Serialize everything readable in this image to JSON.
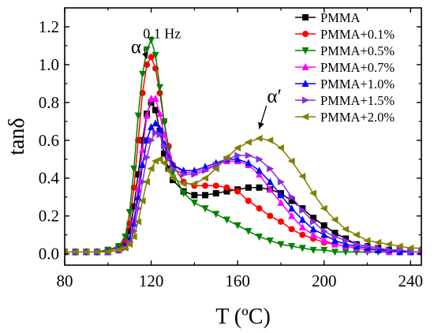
{
  "chart_data": {
    "type": "line",
    "xlabel": "T (ºC)",
    "ylabel": "tanδ",
    "xlim": [
      80,
      245
    ],
    "ylim": [
      -0.06,
      1.3
    ],
    "xticks": [
      80,
      120,
      160,
      200,
      240
    ],
    "yticks": [
      0.0,
      0.2,
      0.4,
      0.6,
      0.8,
      1.0,
      1.2
    ],
    "ytick_labels": [
      "0.0",
      "0.2",
      "0.4",
      "0.6",
      "0.8",
      "1.0",
      "1.2"
    ],
    "grid": false,
    "legend_position": "top-right",
    "annotations": [
      {
        "id": "freq",
        "text": "0.1 Hz",
        "x": 125,
        "y": 1.14
      },
      {
        "id": "alpha",
        "text": "α",
        "x": 113,
        "y": 1.06,
        "arrow_to": [
          118,
          1.03
        ]
      },
      {
        "id": "alpha-prime",
        "text": "α′",
        "x": 177,
        "y": 0.8,
        "arrow_to": [
          170,
          0.66
        ]
      }
    ],
    "series": [
      {
        "name": "PMMA",
        "color": "#000000",
        "marker": "square",
        "x": [
          80,
          85,
          90,
          95,
          100,
          105,
          108,
          110,
          112,
          114,
          116,
          118,
          120,
          122,
          124,
          126,
          128,
          130,
          135,
          140,
          145,
          150,
          155,
          160,
          165,
          170,
          175,
          180,
          185,
          190,
          195,
          200,
          205,
          210,
          215,
          220,
          225,
          230,
          235,
          240,
          245
        ],
        "y": [
          0.01,
          0.01,
          0.01,
          0.01,
          0.02,
          0.03,
          0.06,
          0.12,
          0.25,
          0.42,
          0.6,
          0.74,
          0.8,
          0.76,
          0.65,
          0.53,
          0.45,
          0.39,
          0.33,
          0.31,
          0.31,
          0.32,
          0.33,
          0.34,
          0.35,
          0.35,
          0.34,
          0.32,
          0.28,
          0.24,
          0.19,
          0.15,
          0.11,
          0.08,
          0.05,
          0.04,
          0.03,
          0.02,
          0.02,
          0.01,
          0.01
        ]
      },
      {
        "name": "PMMA+0.1%",
        "color": "#ff0000",
        "marker": "circle",
        "x": [
          80,
          85,
          90,
          95,
          100,
          105,
          108,
          110,
          112,
          114,
          116,
          118,
          120,
          122,
          124,
          126,
          128,
          130,
          135,
          140,
          145,
          150,
          155,
          160,
          165,
          170,
          175,
          180,
          185,
          190,
          195,
          200,
          205,
          210,
          215,
          220,
          225,
          230,
          235,
          240,
          245
        ],
        "y": [
          0.01,
          0.01,
          0.01,
          0.01,
          0.02,
          0.03,
          0.07,
          0.16,
          0.35,
          0.6,
          0.85,
          1.0,
          1.04,
          0.98,
          0.85,
          0.7,
          0.57,
          0.47,
          0.38,
          0.36,
          0.36,
          0.36,
          0.35,
          0.33,
          0.28,
          0.24,
          0.2,
          0.17,
          0.13,
          0.1,
          0.08,
          0.06,
          0.05,
          0.04,
          0.03,
          0.02,
          0.02,
          0.01,
          0.01,
          0.01,
          0.01
        ]
      },
      {
        "name": "PMMA+0.5%",
        "color": "#008000",
        "marker": "triangle-down",
        "x": [
          80,
          85,
          90,
          95,
          100,
          105,
          108,
          110,
          112,
          114,
          116,
          118,
          120,
          122,
          124,
          126,
          128,
          130,
          135,
          140,
          145,
          150,
          155,
          160,
          165,
          170,
          175,
          180,
          185,
          190,
          195,
          200,
          205,
          210,
          215,
          220,
          225,
          230,
          235,
          240,
          245
        ],
        "y": [
          0.01,
          0.01,
          0.01,
          0.01,
          0.02,
          0.04,
          0.09,
          0.22,
          0.45,
          0.73,
          0.95,
          1.08,
          1.13,
          1.05,
          0.88,
          0.7,
          0.55,
          0.43,
          0.32,
          0.27,
          0.24,
          0.21,
          0.18,
          0.15,
          0.12,
          0.09,
          0.07,
          0.05,
          0.04,
          0.03,
          0.02,
          0.02,
          0.01,
          0.01,
          0.01,
          0.01,
          0.01,
          0.01,
          0.01,
          0.01,
          0.01
        ]
      },
      {
        "name": "PMMA+0.7%",
        "color": "#ff00ff",
        "marker": "triangle-up",
        "x": [
          80,
          85,
          90,
          95,
          100,
          105,
          108,
          110,
          112,
          114,
          116,
          118,
          120,
          122,
          124,
          126,
          128,
          130,
          135,
          140,
          145,
          150,
          155,
          160,
          165,
          170,
          175,
          180,
          185,
          190,
          195,
          200,
          205,
          210,
          215,
          220,
          225,
          230,
          235,
          240,
          245
        ],
        "y": [
          0.01,
          0.01,
          0.01,
          0.01,
          0.01,
          0.02,
          0.04,
          0.08,
          0.18,
          0.34,
          0.55,
          0.73,
          0.82,
          0.82,
          0.74,
          0.63,
          0.53,
          0.47,
          0.43,
          0.43,
          0.45,
          0.47,
          0.49,
          0.49,
          0.47,
          0.42,
          0.34,
          0.27,
          0.2,
          0.14,
          0.1,
          0.07,
          0.05,
          0.04,
          0.03,
          0.02,
          0.02,
          0.01,
          0.01,
          0.01,
          0.01
        ]
      },
      {
        "name": "PMMA+1.0%",
        "color": "#0000ff",
        "marker": "triangle-up",
        "x": [
          80,
          85,
          90,
          95,
          100,
          105,
          108,
          110,
          112,
          114,
          116,
          118,
          120,
          122,
          124,
          126,
          128,
          130,
          135,
          140,
          145,
          150,
          155,
          160,
          165,
          170,
          175,
          180,
          185,
          190,
          195,
          200,
          205,
          210,
          215,
          220,
          225,
          230,
          235,
          240,
          245
        ],
        "y": [
          0.01,
          0.01,
          0.01,
          0.01,
          0.01,
          0.02,
          0.04,
          0.08,
          0.16,
          0.3,
          0.47,
          0.6,
          0.67,
          0.69,
          0.66,
          0.58,
          0.51,
          0.47,
          0.44,
          0.44,
          0.46,
          0.48,
          0.5,
          0.5,
          0.48,
          0.44,
          0.38,
          0.31,
          0.24,
          0.18,
          0.13,
          0.1,
          0.07,
          0.05,
          0.04,
          0.03,
          0.02,
          0.02,
          0.01,
          0.01,
          0.01
        ]
      },
      {
        "name": "PMMA+1.5%",
        "color": "#8a2be2",
        "marker": "triangle-right",
        "x": [
          80,
          85,
          90,
          95,
          100,
          105,
          108,
          110,
          112,
          114,
          116,
          118,
          120,
          122,
          124,
          126,
          128,
          130,
          135,
          140,
          145,
          150,
          155,
          160,
          165,
          170,
          175,
          180,
          185,
          190,
          195,
          200,
          205,
          210,
          215,
          220,
          225,
          230,
          235,
          240,
          245
        ],
        "y": [
          0.01,
          0.01,
          0.01,
          0.01,
          0.01,
          0.02,
          0.03,
          0.06,
          0.12,
          0.24,
          0.38,
          0.51,
          0.6,
          0.64,
          0.63,
          0.57,
          0.5,
          0.45,
          0.42,
          0.42,
          0.44,
          0.47,
          0.5,
          0.52,
          0.52,
          0.5,
          0.45,
          0.38,
          0.3,
          0.23,
          0.17,
          0.12,
          0.09,
          0.07,
          0.05,
          0.04,
          0.03,
          0.02,
          0.02,
          0.01,
          0.01
        ]
      },
      {
        "name": "PMMA+2.0%",
        "color": "#808000",
        "marker": "triangle-left",
        "x": [
          80,
          85,
          90,
          95,
          100,
          105,
          108,
          110,
          112,
          114,
          116,
          118,
          120,
          122,
          124,
          126,
          128,
          130,
          135,
          140,
          145,
          150,
          155,
          160,
          165,
          170,
          175,
          180,
          185,
          190,
          195,
          200,
          205,
          210,
          215,
          220,
          225,
          230,
          235,
          240,
          245
        ],
        "y": [
          0.01,
          0.01,
          0.01,
          0.01,
          0.01,
          0.02,
          0.03,
          0.05,
          0.09,
          0.17,
          0.28,
          0.38,
          0.45,
          0.49,
          0.5,
          0.48,
          0.44,
          0.4,
          0.37,
          0.37,
          0.4,
          0.45,
          0.51,
          0.56,
          0.59,
          0.61,
          0.6,
          0.56,
          0.49,
          0.41,
          0.32,
          0.24,
          0.18,
          0.13,
          0.1,
          0.07,
          0.06,
          0.05,
          0.04,
          0.03,
          0.03
        ]
      }
    ]
  }
}
